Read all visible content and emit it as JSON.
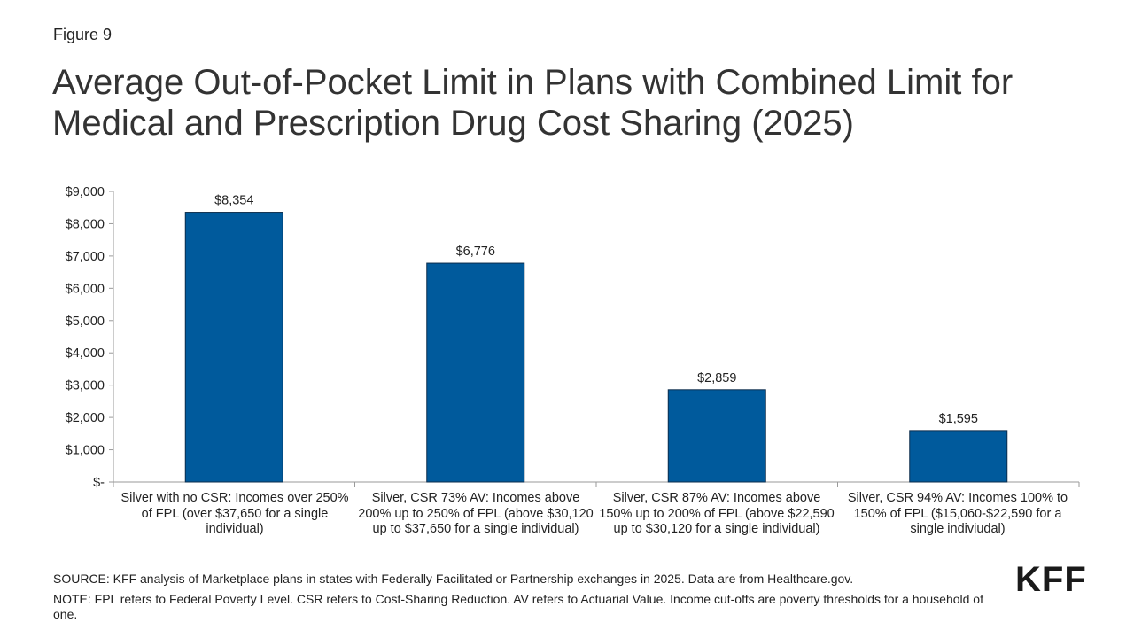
{
  "figure_label": "Figure 9",
  "title": "Average Out-of-Pocket Limit in Plans with Combined Limit for Medical and Prescription Drug Cost Sharing (2025)",
  "chart_data": {
    "type": "bar",
    "categories": [
      "Silver with no CSR: Incomes over 250% of FPL (over $37,650 for a single individual)",
      "Silver, CSR 73% AV: Incomes above 200% up to 250% of FPL (above $30,120 up to $37,650 for a single individual)",
      "Silver, CSR 87% AV: Incomes above 150% up to 200% of FPL (above $22,590 up to $30,120 for a single individual)",
      "Silver, CSR 94% AV: Incomes 100% to 150% of FPL ($15,060-$22,590 for a single indiviudal)"
    ],
    "values": [
      8354,
      6776,
      2859,
      1595
    ],
    "data_labels": [
      "$8,354",
      "$6,776",
      "$2,859",
      "$1,595"
    ],
    "ylim": [
      0,
      9000
    ],
    "yticks": [
      0,
      1000,
      2000,
      3000,
      4000,
      5000,
      6000,
      7000,
      8000,
      9000
    ],
    "ytick_labels": [
      "$-",
      "$1,000",
      "$2,000",
      "$3,000",
      "$4,000",
      "$5,000",
      "$6,000",
      "$7,000",
      "$8,000",
      "$9,000"
    ],
    "bar_color": "#005a9c",
    "grid": false
  },
  "footer": {
    "source": "SOURCE: KFF analysis of Marketplace plans in states with Federally Facilitated or Partnership exchanges in 2025. Data are from Healthcare.gov.",
    "note": "NOTE: FPL refers to Federal Poverty Level. CSR refers to Cost-Sharing Reduction. AV refers to Actuarial Value. Income cut-offs are poverty thresholds for a household of one."
  },
  "logo_text": "KFF"
}
